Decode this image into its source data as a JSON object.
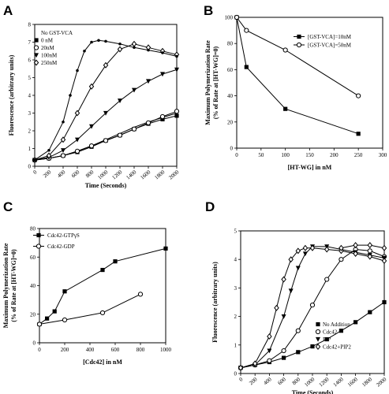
{
  "chart_data": [
    {
      "panel": "A",
      "type": "line",
      "xlabel": "Time (Seconds)",
      "ylabel": "Fluorescence (arbitrary units)",
      "xlim": [
        0,
        2000
      ],
      "ylim": [
        0,
        8
      ],
      "xticks": [
        0,
        200,
        400,
        600,
        800,
        1000,
        1200,
        1400,
        1600,
        1800,
        2000
      ],
      "yticks": [
        0,
        1,
        2,
        3,
        4,
        5,
        6,
        7,
        8
      ],
      "legend_position": "top-left",
      "series": [
        {
          "name": "No GST-VCA",
          "marker": "none",
          "x": [
            0,
            200,
            400,
            600,
            800,
            1000,
            1200,
            1400,
            1600,
            1800,
            2000
          ],
          "y": [
            0.35,
            0.45,
            0.6,
            0.85,
            1.15,
            1.5,
            1.85,
            2.2,
            2.5,
            2.75,
            3.0
          ]
        },
        {
          "name": "0 nM",
          "marker": "square",
          "x": [
            0,
            200,
            400,
            600,
            800,
            1000,
            1200,
            1400,
            1600,
            1800,
            2000
          ],
          "y": [
            0.35,
            0.45,
            0.6,
            0.8,
            1.1,
            1.45,
            1.75,
            2.1,
            2.4,
            2.65,
            2.85
          ]
        },
        {
          "name": "20nM",
          "marker": "circle-open",
          "x": [
            0,
            200,
            400,
            600,
            800,
            1000,
            1200,
            1400,
            1600,
            1800,
            2000
          ],
          "y": [
            0.35,
            0.45,
            0.6,
            0.85,
            1.15,
            1.45,
            1.75,
            2.1,
            2.45,
            2.8,
            3.1
          ]
        },
        {
          "name": "100nM",
          "marker": "triangle-down",
          "x": [
            0,
            200,
            400,
            600,
            800,
            1000,
            1200,
            1400,
            1600,
            1800,
            2000
          ],
          "y": [
            0.35,
            0.5,
            0.9,
            1.5,
            2.25,
            3.0,
            3.7,
            4.3,
            4.8,
            5.2,
            5.45
          ]
        },
        {
          "name": "250nM",
          "marker": "diamond-open",
          "x": [
            0,
            200,
            400,
            600,
            800,
            1000,
            1200,
            1400,
            1600,
            1800,
            2000
          ],
          "y": [
            0.35,
            0.6,
            1.5,
            3.0,
            4.5,
            5.7,
            6.6,
            6.9,
            6.7,
            6.5,
            6.3
          ]
        },
        {
          "name": "",
          "marker": "dot",
          "x": [
            0,
            200,
            400,
            500,
            600,
            700,
            800,
            900,
            1000,
            1200,
            1400,
            1600,
            1800,
            2000
          ],
          "y": [
            0.35,
            0.9,
            2.5,
            4.0,
            5.4,
            6.5,
            7.0,
            7.1,
            7.05,
            6.9,
            6.7,
            6.55,
            6.4,
            6.2
          ]
        }
      ]
    },
    {
      "panel": "B",
      "type": "line",
      "xlabel": "[HT-WG] in nM",
      "ylabel_line1": "Maximum Polymerization Rate",
      "ylabel_line2": "(% of Rate at [HT-WG]=0)",
      "xlim": [
        0,
        300
      ],
      "ylim": [
        0,
        100
      ],
      "xticks": [
        0,
        50,
        100,
        150,
        200,
        250,
        300
      ],
      "yticks": [
        0,
        20,
        40,
        60,
        80,
        100
      ],
      "legend_position": "top-right",
      "series": [
        {
          "name": "[GST-VCA]=10nM",
          "marker": "square",
          "x": [
            0,
            20,
            100,
            250
          ],
          "y": [
            100,
            62,
            30,
            11
          ]
        },
        {
          "name": "[GST-VCA]=50nM",
          "marker": "circle-open",
          "x": [
            0,
            20,
            100,
            250
          ],
          "y": [
            100,
            90,
            75,
            40
          ]
        }
      ]
    },
    {
      "panel": "C",
      "type": "line",
      "xlabel": "[Cdc42] in nM",
      "ylabel_line1": "Maximum Polymerization Rate",
      "ylabel_line2": "(% of Rate at [HT-WG]=0)",
      "xlim": [
        0,
        1000
      ],
      "ylim": [
        0,
        80
      ],
      "xticks": [
        0,
        200,
        400,
        600,
        800,
        1000
      ],
      "yticks": [
        0,
        20,
        40,
        60,
        80
      ],
      "legend_position": "top-left",
      "series": [
        {
          "name": "Cdc42-GTPγS",
          "marker": "square",
          "x": [
            0,
            60,
            120,
            200,
            500,
            600,
            1000
          ],
          "y": [
            13,
            17,
            22,
            36,
            51,
            57,
            66
          ]
        },
        {
          "name": "Cdc42-GDP",
          "marker": "circle-open",
          "x": [
            0,
            200,
            500,
            800
          ],
          "y": [
            13,
            16,
            21,
            34
          ]
        }
      ]
    },
    {
      "panel": "D",
      "type": "line",
      "xlabel": "Time (Seconds)",
      "ylabel": "Fluorescence (arbitrary units)",
      "xlim": [
        0,
        2000
      ],
      "ylim": [
        0,
        5
      ],
      "xticks": [
        0,
        200,
        400,
        600,
        800,
        1000,
        1200,
        1400,
        1600,
        1800,
        2000
      ],
      "yticks": [
        0,
        1,
        2,
        3,
        4,
        5
      ],
      "legend_position": "bottom-right",
      "series": [
        {
          "name": "No Addition",
          "marker": "square",
          "x": [
            0,
            200,
            400,
            600,
            800,
            1000,
            1200,
            1400,
            1600,
            1800,
            2000
          ],
          "y": [
            0.2,
            0.3,
            0.4,
            0.55,
            0.75,
            0.95,
            1.2,
            1.5,
            1.8,
            2.15,
            2.5
          ]
        },
        {
          "name": "Cdc42",
          "marker": "circle-open",
          "x": [
            0,
            200,
            400,
            600,
            800,
            1000,
            1200,
            1400,
            1600,
            1800,
            2000
          ],
          "y": [
            0.2,
            0.3,
            0.45,
            0.8,
            1.5,
            2.4,
            3.3,
            4.0,
            4.35,
            4.3,
            4.1
          ]
        },
        {
          "name": "PIP",
          "marker": "triangle-down",
          "x": [
            0,
            200,
            400,
            600,
            700,
            800,
            900,
            1000,
            1200,
            1400,
            1600,
            1800,
            2000
          ],
          "y": [
            0.2,
            0.3,
            0.8,
            2.0,
            2.9,
            3.7,
            4.2,
            4.45,
            4.45,
            4.35,
            4.25,
            4.15,
            4.05
          ]
        },
        {
          "name": "Cdc42+PIP2",
          "marker": "diamond-open",
          "x": [
            0,
            200,
            400,
            500,
            600,
            700,
            800,
            900,
            1000,
            1200,
            1400,
            1600,
            1800,
            2000
          ],
          "y": [
            0.2,
            0.35,
            1.3,
            2.3,
            3.3,
            4.0,
            4.3,
            4.4,
            4.4,
            4.35,
            4.3,
            4.2,
            4.1,
            3.95
          ]
        },
        {
          "name": "",
          "marker": "diamond-open",
          "x": [
            1400,
            1600,
            1800,
            2000
          ],
          "y": [
            4.4,
            4.5,
            4.5,
            4.4
          ]
        }
      ]
    }
  ]
}
